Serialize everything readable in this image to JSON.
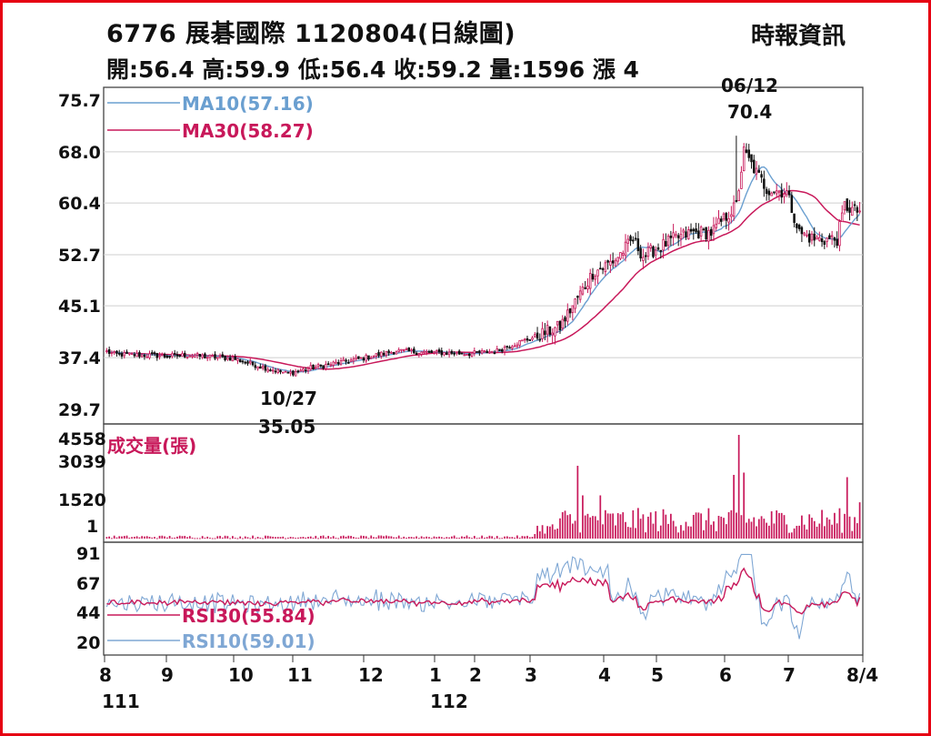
{
  "header": {
    "title": "6776  展碁國際 1120804(日線圖)",
    "source": "時報資訊",
    "quote": "開:56.4 高:59.9 低:56.4 收:59.2 量:1596 漲 4"
  },
  "chart_data": [
    {
      "type": "candlestick",
      "ylim": [
        29.7,
        75.7
      ],
      "y_ticks": [
        "75.7",
        "68.0",
        "60.4",
        "52.7",
        "45.1",
        "37.4",
        "29.7"
      ],
      "x_months": [
        "8",
        "9",
        "10",
        "11",
        "12",
        "1",
        "2",
        "3",
        "4",
        "5",
        "6",
        "7",
        "8/4"
      ],
      "x_years": [
        "111",
        "112"
      ],
      "grid": true,
      "series": [
        {
          "name": "MA10(57.16)",
          "color": "#6a9fd0"
        },
        {
          "name": "MA30(58.27)",
          "color": "#c8185a"
        }
      ],
      "annotations": [
        {
          "date": "06/12",
          "value": "70.4",
          "kind": "high"
        },
        {
          "date": "10/27",
          "value": "35.05",
          "kind": "low"
        }
      ],
      "anchors": {
        "x": [
          0,
          3,
          21,
          23,
          33,
          40,
          50,
          57,
          72,
          80,
          100,
          115,
          125,
          134,
          144,
          155,
          160,
          170,
          180,
          193,
          202,
          209,
          213,
          225,
          232,
          240,
          250,
          253,
          257,
          262,
          270,
          275,
          281,
          290,
          293,
          297
        ],
        "close": [
          38.3,
          37.9,
          37.7,
          37.6,
          37.8,
          37.5,
          37.3,
          36.5,
          35.0,
          35.8,
          37.2,
          38.4,
          38.2,
          38.1,
          38.0,
          38.4,
          39.2,
          40.5,
          42.0,
          50.0,
          52.0,
          55.0,
          52.5,
          55.0,
          56.0,
          56.0,
          60.0,
          68.0,
          65.5,
          62.5,
          62.0,
          56.0,
          55.0,
          55.0,
          60.0,
          59.2
        ]
      }
    },
    {
      "type": "bar",
      "title": "成交量(張)",
      "y_ticks": [
        "4558",
        "3039",
        "1520",
        "1"
      ],
      "ylim": [
        1,
        4558
      ],
      "last_value": 1596
    },
    {
      "type": "line",
      "y_ticks": [
        "91",
        "67",
        "44",
        "20"
      ],
      "ylim": [
        20,
        91
      ],
      "series": [
        {
          "name": "RSI30(55.84)",
          "color": "#c8185a",
          "last": 55.84
        },
        {
          "name": "RSI10(59.01)",
          "color": "#7fa7d4",
          "last": 59.01
        }
      ]
    }
  ]
}
